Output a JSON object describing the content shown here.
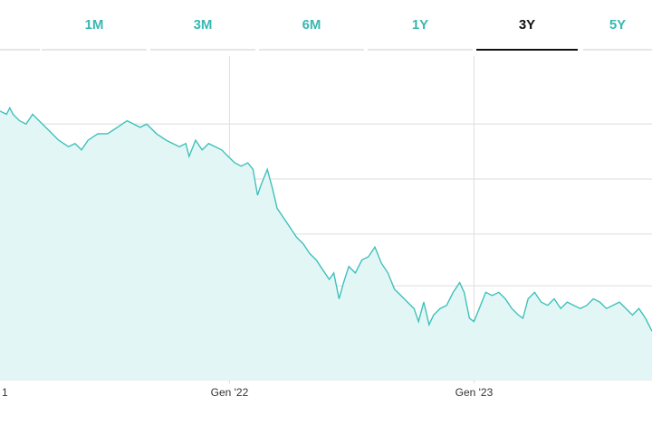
{
  "tabs": [
    {
      "label": ""
    },
    {
      "label": "1M"
    },
    {
      "label": "3M"
    },
    {
      "label": "6M"
    },
    {
      "label": "1Y"
    },
    {
      "label": "3Y",
      "active": true
    },
    {
      "label": "5Y"
    }
  ],
  "colors": {
    "line": "#3fc1ba",
    "fill": "#e3f6f6",
    "tab_text": "#38b8b1",
    "grid": "#dedede"
  },
  "chart_data": {
    "type": "area",
    "title": "",
    "xlabel": "",
    "ylabel": "",
    "x_tick_labels": [
      "1",
      "Gen '22",
      "Gen '23"
    ],
    "xlim": [
      "2021-02-12",
      "2024-02-12"
    ],
    "ylim": [
      0,
      100
    ],
    "grid": true,
    "legend": "none",
    "series": [
      {
        "values": [
          [
            0.0,
            83
          ],
          [
            0.01,
            82
          ],
          [
            0.015,
            84
          ],
          [
            0.02,
            82
          ],
          [
            0.03,
            80
          ],
          [
            0.04,
            79
          ],
          [
            0.05,
            82
          ],
          [
            0.06,
            80
          ],
          [
            0.075,
            77
          ],
          [
            0.09,
            74
          ],
          [
            0.105,
            72
          ],
          [
            0.115,
            73
          ],
          [
            0.125,
            71
          ],
          [
            0.135,
            74
          ],
          [
            0.15,
            76
          ],
          [
            0.165,
            76
          ],
          [
            0.18,
            78
          ],
          [
            0.195,
            80
          ],
          [
            0.205,
            79
          ],
          [
            0.215,
            78
          ],
          [
            0.225,
            79
          ],
          [
            0.24,
            76
          ],
          [
            0.255,
            74
          ],
          [
            0.265,
            73
          ],
          [
            0.275,
            72
          ],
          [
            0.285,
            73
          ],
          [
            0.29,
            69
          ],
          [
            0.3,
            74
          ],
          [
            0.31,
            71
          ],
          [
            0.32,
            73
          ],
          [
            0.33,
            72
          ],
          [
            0.34,
            71
          ],
          [
            0.35,
            69
          ],
          [
            0.36,
            67
          ],
          [
            0.37,
            66
          ],
          [
            0.38,
            67
          ],
          [
            0.388,
            65
          ],
          [
            0.395,
            57
          ],
          [
            0.4,
            60
          ],
          [
            0.41,
            65
          ],
          [
            0.418,
            59
          ],
          [
            0.425,
            53
          ],
          [
            0.435,
            50
          ],
          [
            0.445,
            47
          ],
          [
            0.455,
            44
          ],
          [
            0.465,
            42
          ],
          [
            0.475,
            39
          ],
          [
            0.485,
            37
          ],
          [
            0.495,
            34
          ],
          [
            0.505,
            31
          ],
          [
            0.512,
            33
          ],
          [
            0.52,
            25
          ],
          [
            0.527,
            30
          ],
          [
            0.535,
            35
          ],
          [
            0.545,
            33
          ],
          [
            0.555,
            37
          ],
          [
            0.565,
            38
          ],
          [
            0.575,
            41
          ],
          [
            0.585,
            36
          ],
          [
            0.595,
            33
          ],
          [
            0.605,
            28
          ],
          [
            0.615,
            26
          ],
          [
            0.625,
            24
          ],
          [
            0.635,
            22
          ],
          [
            0.642,
            18
          ],
          [
            0.65,
            24
          ],
          [
            0.658,
            17
          ],
          [
            0.665,
            20
          ],
          [
            0.675,
            22
          ],
          [
            0.685,
            23
          ],
          [
            0.695,
            27
          ],
          [
            0.705,
            30
          ],
          [
            0.712,
            27
          ],
          [
            0.72,
            19
          ],
          [
            0.727,
            18
          ],
          [
            0.735,
            22
          ],
          [
            0.745,
            27
          ],
          [
            0.755,
            26
          ],
          [
            0.765,
            27
          ],
          [
            0.775,
            25
          ],
          [
            0.785,
            22
          ],
          [
            0.795,
            20
          ],
          [
            0.802,
            19
          ],
          [
            0.81,
            25
          ],
          [
            0.82,
            27
          ],
          [
            0.83,
            24
          ],
          [
            0.84,
            23
          ],
          [
            0.85,
            25
          ],
          [
            0.86,
            22
          ],
          [
            0.87,
            24
          ],
          [
            0.88,
            23
          ],
          [
            0.89,
            22
          ],
          [
            0.9,
            23
          ],
          [
            0.91,
            25
          ],
          [
            0.92,
            24
          ],
          [
            0.93,
            22
          ],
          [
            0.94,
            23
          ],
          [
            0.95,
            24
          ],
          [
            0.96,
            22
          ],
          [
            0.97,
            20
          ],
          [
            0.98,
            22
          ],
          [
            0.99,
            19
          ],
          [
            1.0,
            15
          ]
        ]
      }
    ]
  }
}
